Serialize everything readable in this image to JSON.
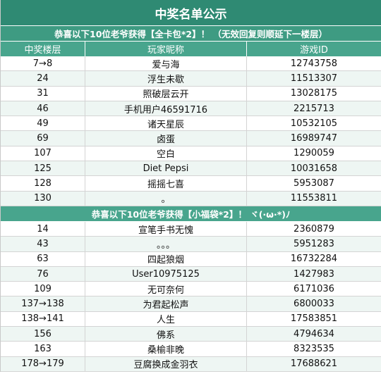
{
  "title": "中奖名单公示",
  "section1": {
    "banner": "恭喜以下10位老爷获得【全卡包*2】！ （无效回复则顺延下一楼层）",
    "headers": [
      "中奖楼层",
      "玩家昵称",
      "游戏ID"
    ],
    "rows": [
      [
        "7→8",
        "爱与海",
        "12743758"
      ],
      [
        "24",
        "浮生未歇",
        "11513307"
      ],
      [
        "31",
        "照破层云开",
        "13028175"
      ],
      [
        "46",
        "手机用户46591716",
        "2215713"
      ],
      [
        "49",
        "诸天星辰",
        "10532105"
      ],
      [
        "69",
        "卤蛋",
        "16989747"
      ],
      [
        "107",
        "空白",
        "1290059"
      ],
      [
        "125",
        "Diet Pepsi",
        "10031658"
      ],
      [
        "128",
        "摇摇七喜",
        "5953087"
      ],
      [
        "130",
        "。",
        "11553811"
      ]
    ]
  },
  "section2": {
    "banner": "恭喜以下10位老爷获得【小福袋*2】！ ヾ(·ω·*)ﾉ",
    "rows": [
      [
        "14",
        "宣笔手书无愧",
        "2360879"
      ],
      [
        "43",
        "。。。",
        "5951283"
      ],
      [
        "63",
        "四起狼烟",
        "16732284"
      ],
      [
        "76",
        "User10975125",
        "1427983"
      ],
      [
        "109",
        "无可奈何",
        "6171036"
      ],
      [
        "137→138",
        "为君起松声",
        "6800033"
      ],
      [
        "138→141",
        "人生",
        "17583851"
      ],
      [
        "156",
        "佛系",
        "4794634"
      ],
      [
        "163",
        "桑榆非晚",
        "8323535"
      ],
      [
        "178→179",
        "豆腐换成金羽衣",
        "17688621"
      ]
    ]
  },
  "colors": {
    "title_bg": "#2f8a73",
    "banner_bg": "#48a58d",
    "alt_row_bg": "#eef6f3"
  }
}
